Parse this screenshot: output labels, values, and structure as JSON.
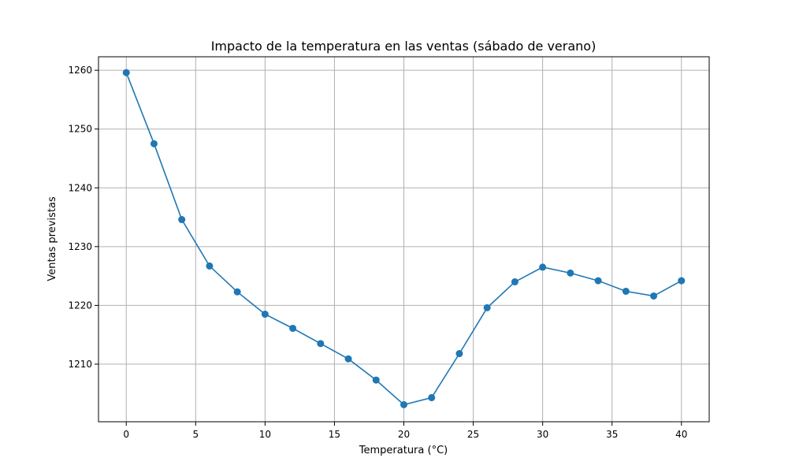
{
  "chart_data": {
    "type": "line",
    "title": "Impacto de la temperatura en las ventas (sábado de verano)",
    "xlabel": "Temperatura (°C)",
    "ylabel": "Ventas previstas",
    "xlim": [
      -2,
      42
    ],
    "ylim": [
      1200.2,
      1262.3
    ],
    "xticks": [
      0,
      5,
      10,
      15,
      20,
      25,
      30,
      35,
      40
    ],
    "yticks": [
      1210,
      1220,
      1230,
      1240,
      1250,
      1260
    ],
    "grid": true,
    "marker": "circle",
    "series": [
      {
        "color": "#1f77b4",
        "x": [
          0,
          2,
          4,
          6,
          8,
          10,
          12,
          14,
          16,
          18,
          20,
          22,
          24,
          26,
          28,
          30,
          32,
          34,
          36,
          38,
          40
        ],
        "y": [
          1259.6,
          1247.5,
          1234.6,
          1226.7,
          1222.3,
          1218.5,
          1216.1,
          1213.5,
          1210.9,
          1207.3,
          1203.1,
          1204.3,
          1211.8,
          1219.6,
          1224.0,
          1226.5,
          1225.5,
          1224.2,
          1222.4,
          1221.6,
          1224.2
        ]
      }
    ]
  }
}
